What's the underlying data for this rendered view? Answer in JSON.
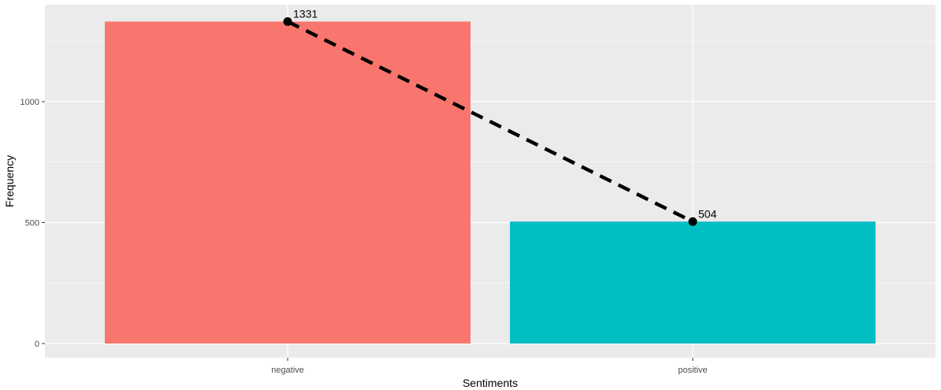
{
  "chart_data": {
    "type": "bar",
    "title": "",
    "xlabel": "Sentiments",
    "ylabel": "Frequency",
    "categories": [
      "negative",
      "positive"
    ],
    "values": [
      1331,
      504
    ],
    "bar_colors": [
      "#F8766D",
      "#00BFC4"
    ],
    "ylim": [
      0,
      1400
    ],
    "yticks": [
      0,
      500,
      1000
    ],
    "grid": true,
    "legend": "none",
    "overlay": {
      "type": "line",
      "style": "dashed",
      "markers": "points",
      "color": "#000000",
      "values": [
        1331,
        504
      ],
      "labels": [
        "1331",
        "504"
      ]
    },
    "panel_background": "#EBEBEB",
    "grid_color": "#FFFFFF"
  }
}
